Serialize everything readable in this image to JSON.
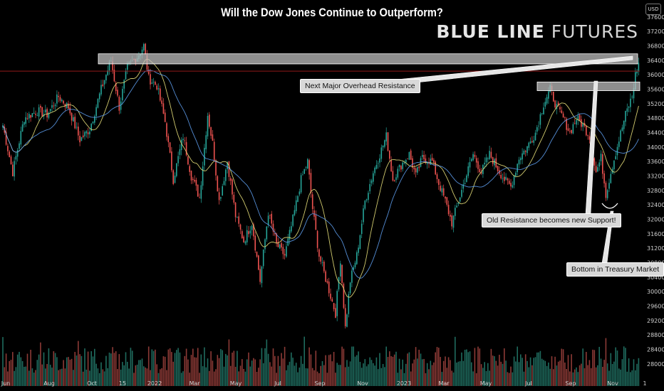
{
  "header": {
    "title": "Will the Dow Jones Continue to Outperform?",
    "brand_bold": "BLUE LINE",
    "brand_rest": " FUTURES",
    "currency": "USD"
  },
  "annotations": {
    "resistance": "Next Major Overhead Resistance",
    "support": "Old Resistance becomes new Support!",
    "treasury": "Bottom in Treasury Market"
  },
  "colors": {
    "background": "#000000",
    "up": "#26a69a",
    "down": "#ef5350",
    "ma_fast": "#e8e07a",
    "ma_slow": "#5d9cec",
    "volume_up": "#1f6b5e",
    "volume_down": "#8c3a36",
    "zone": "#bdbdbd",
    "resistance_line": "#a81e1e"
  },
  "chart_data": {
    "type": "candlestick",
    "title": "Will the Dow Jones Continue to Outperform?",
    "currency": "USD",
    "ylim": [
      27800,
      37400
    ],
    "y_ticks": [
      28000,
      28400,
      28800,
      29200,
      29600,
      30000,
      30400,
      30800,
      31200,
      31600,
      32000,
      32400,
      32800,
      33200,
      33600,
      34000,
      34400,
      34800,
      35200,
      35600,
      36000,
      36400,
      36800,
      37200,
      37600
    ],
    "x_ticks": [
      "Jun",
      "Aug",
      "Oct",
      "15",
      "2022",
      "Mar",
      "May",
      "Jul",
      "Sep",
      "Nov",
      "2023",
      "Mar",
      "May",
      "Jul",
      "Sep",
      "Nov",
      "1"
    ],
    "anchors": [
      [
        0,
        34600
      ],
      [
        6,
        33300
      ],
      [
        13,
        34800
      ],
      [
        21,
        35000
      ],
      [
        27,
        34900
      ],
      [
        34,
        35400
      ],
      [
        40,
        35100
      ],
      [
        47,
        34200
      ],
      [
        53,
        34500
      ],
      [
        60,
        35600
      ],
      [
        66,
        36400
      ],
      [
        71,
        35100
      ],
      [
        76,
        36200
      ],
      [
        82,
        36500
      ],
      [
        86,
        36800
      ],
      [
        89,
        35900
      ],
      [
        94,
        35700
      ],
      [
        99,
        34700
      ],
      [
        104,
        33100
      ],
      [
        110,
        34300
      ],
      [
        115,
        33200
      ],
      [
        120,
        32600
      ],
      [
        125,
        34900
      ],
      [
        128,
        34100
      ],
      [
        132,
        32500
      ],
      [
        137,
        33600
      ],
      [
        142,
        32100
      ],
      [
        147,
        31400
      ],
      [
        152,
        31900
      ],
      [
        157,
        30300
      ],
      [
        162,
        32200
      ],
      [
        167,
        31300
      ],
      [
        172,
        31000
      ],
      [
        177,
        32000
      ],
      [
        182,
        33100
      ],
      [
        186,
        33600
      ],
      [
        189,
        32300
      ],
      [
        193,
        31000
      ],
      [
        198,
        30200
      ],
      [
        203,
        29400
      ],
      [
        206,
        30900
      ],
      [
        209,
        29000
      ],
      [
        212,
        30300
      ],
      [
        216,
        31000
      ],
      [
        221,
        32500
      ],
      [
        226,
        33300
      ],
      [
        230,
        33800
      ],
      [
        234,
        34300
      ],
      [
        238,
        33100
      ],
      [
        243,
        33500
      ],
      [
        248,
        33800
      ],
      [
        252,
        33200
      ],
      [
        256,
        33700
      ],
      [
        262,
        33600
      ],
      [
        266,
        33000
      ],
      [
        270,
        32500
      ],
      [
        274,
        31900
      ],
      [
        278,
        32500
      ],
      [
        282,
        33100
      ],
      [
        287,
        33800
      ],
      [
        292,
        33300
      ],
      [
        297,
        33800
      ],
      [
        302,
        33400
      ],
      [
        306,
        33100
      ],
      [
        310,
        32900
      ],
      [
        315,
        33700
      ],
      [
        320,
        34000
      ],
      [
        325,
        34400
      ],
      [
        330,
        35200
      ],
      [
        334,
        35600
      ],
      [
        338,
        35100
      ],
      [
        342,
        34800
      ],
      [
        346,
        34400
      ],
      [
        350,
        34800
      ],
      [
        354,
        34600
      ],
      [
        358,
        34300
      ],
      [
        362,
        33300
      ],
      [
        365,
        33700
      ],
      [
        368,
        32700
      ],
      [
        372,
        33500
      ],
      [
        376,
        34200
      ],
      [
        380,
        34900
      ],
      [
        384,
        35400
      ],
      [
        386,
        36000
      ],
      [
        388,
        36300
      ]
    ],
    "zones": [
      {
        "label": "Next Major Overhead Resistance",
        "y_range": [
          36300,
          36580
        ]
      },
      {
        "label": "Old Resistance becomes new Support!",
        "y_range": [
          35560,
          35800
        ]
      }
    ],
    "resistance_line": 36100
  }
}
